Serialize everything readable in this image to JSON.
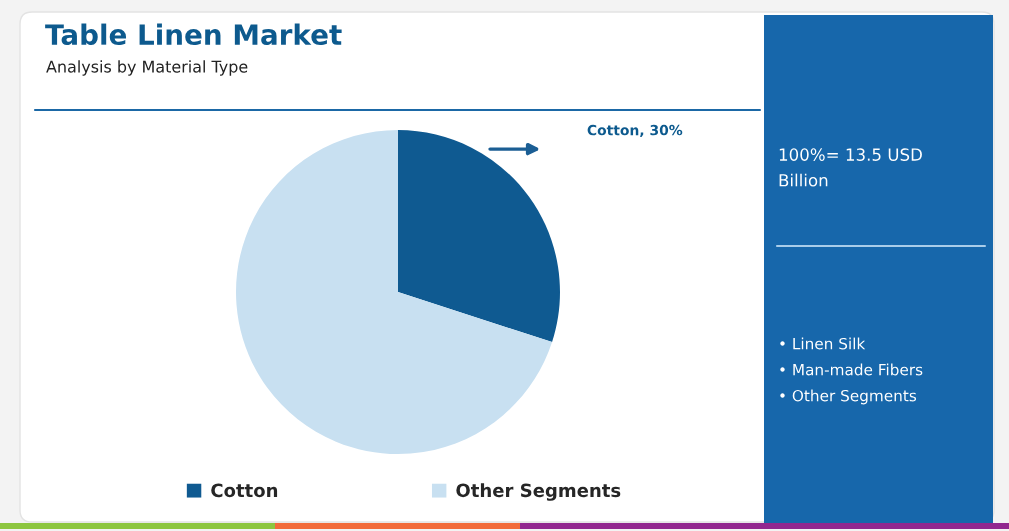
{
  "chart_data": {
    "type": "pie",
    "title": "Table Linen Market",
    "subtitle": "Analysis by Material Type",
    "categories": [
      "Cotton",
      "Other Segments"
    ],
    "values": [
      30,
      70
    ],
    "colors": [
      "#0f5a91",
      "#c8e0f1"
    ],
    "value_labels": [
      "Cotton, 30%",
      null
    ],
    "legend": "bottom",
    "annotations": [
      "100%= 13.5 USD\nBillion",
      "• Linen Silk",
      "• Man-made Fibers",
      "• Other Segments"
    ]
  }
}
